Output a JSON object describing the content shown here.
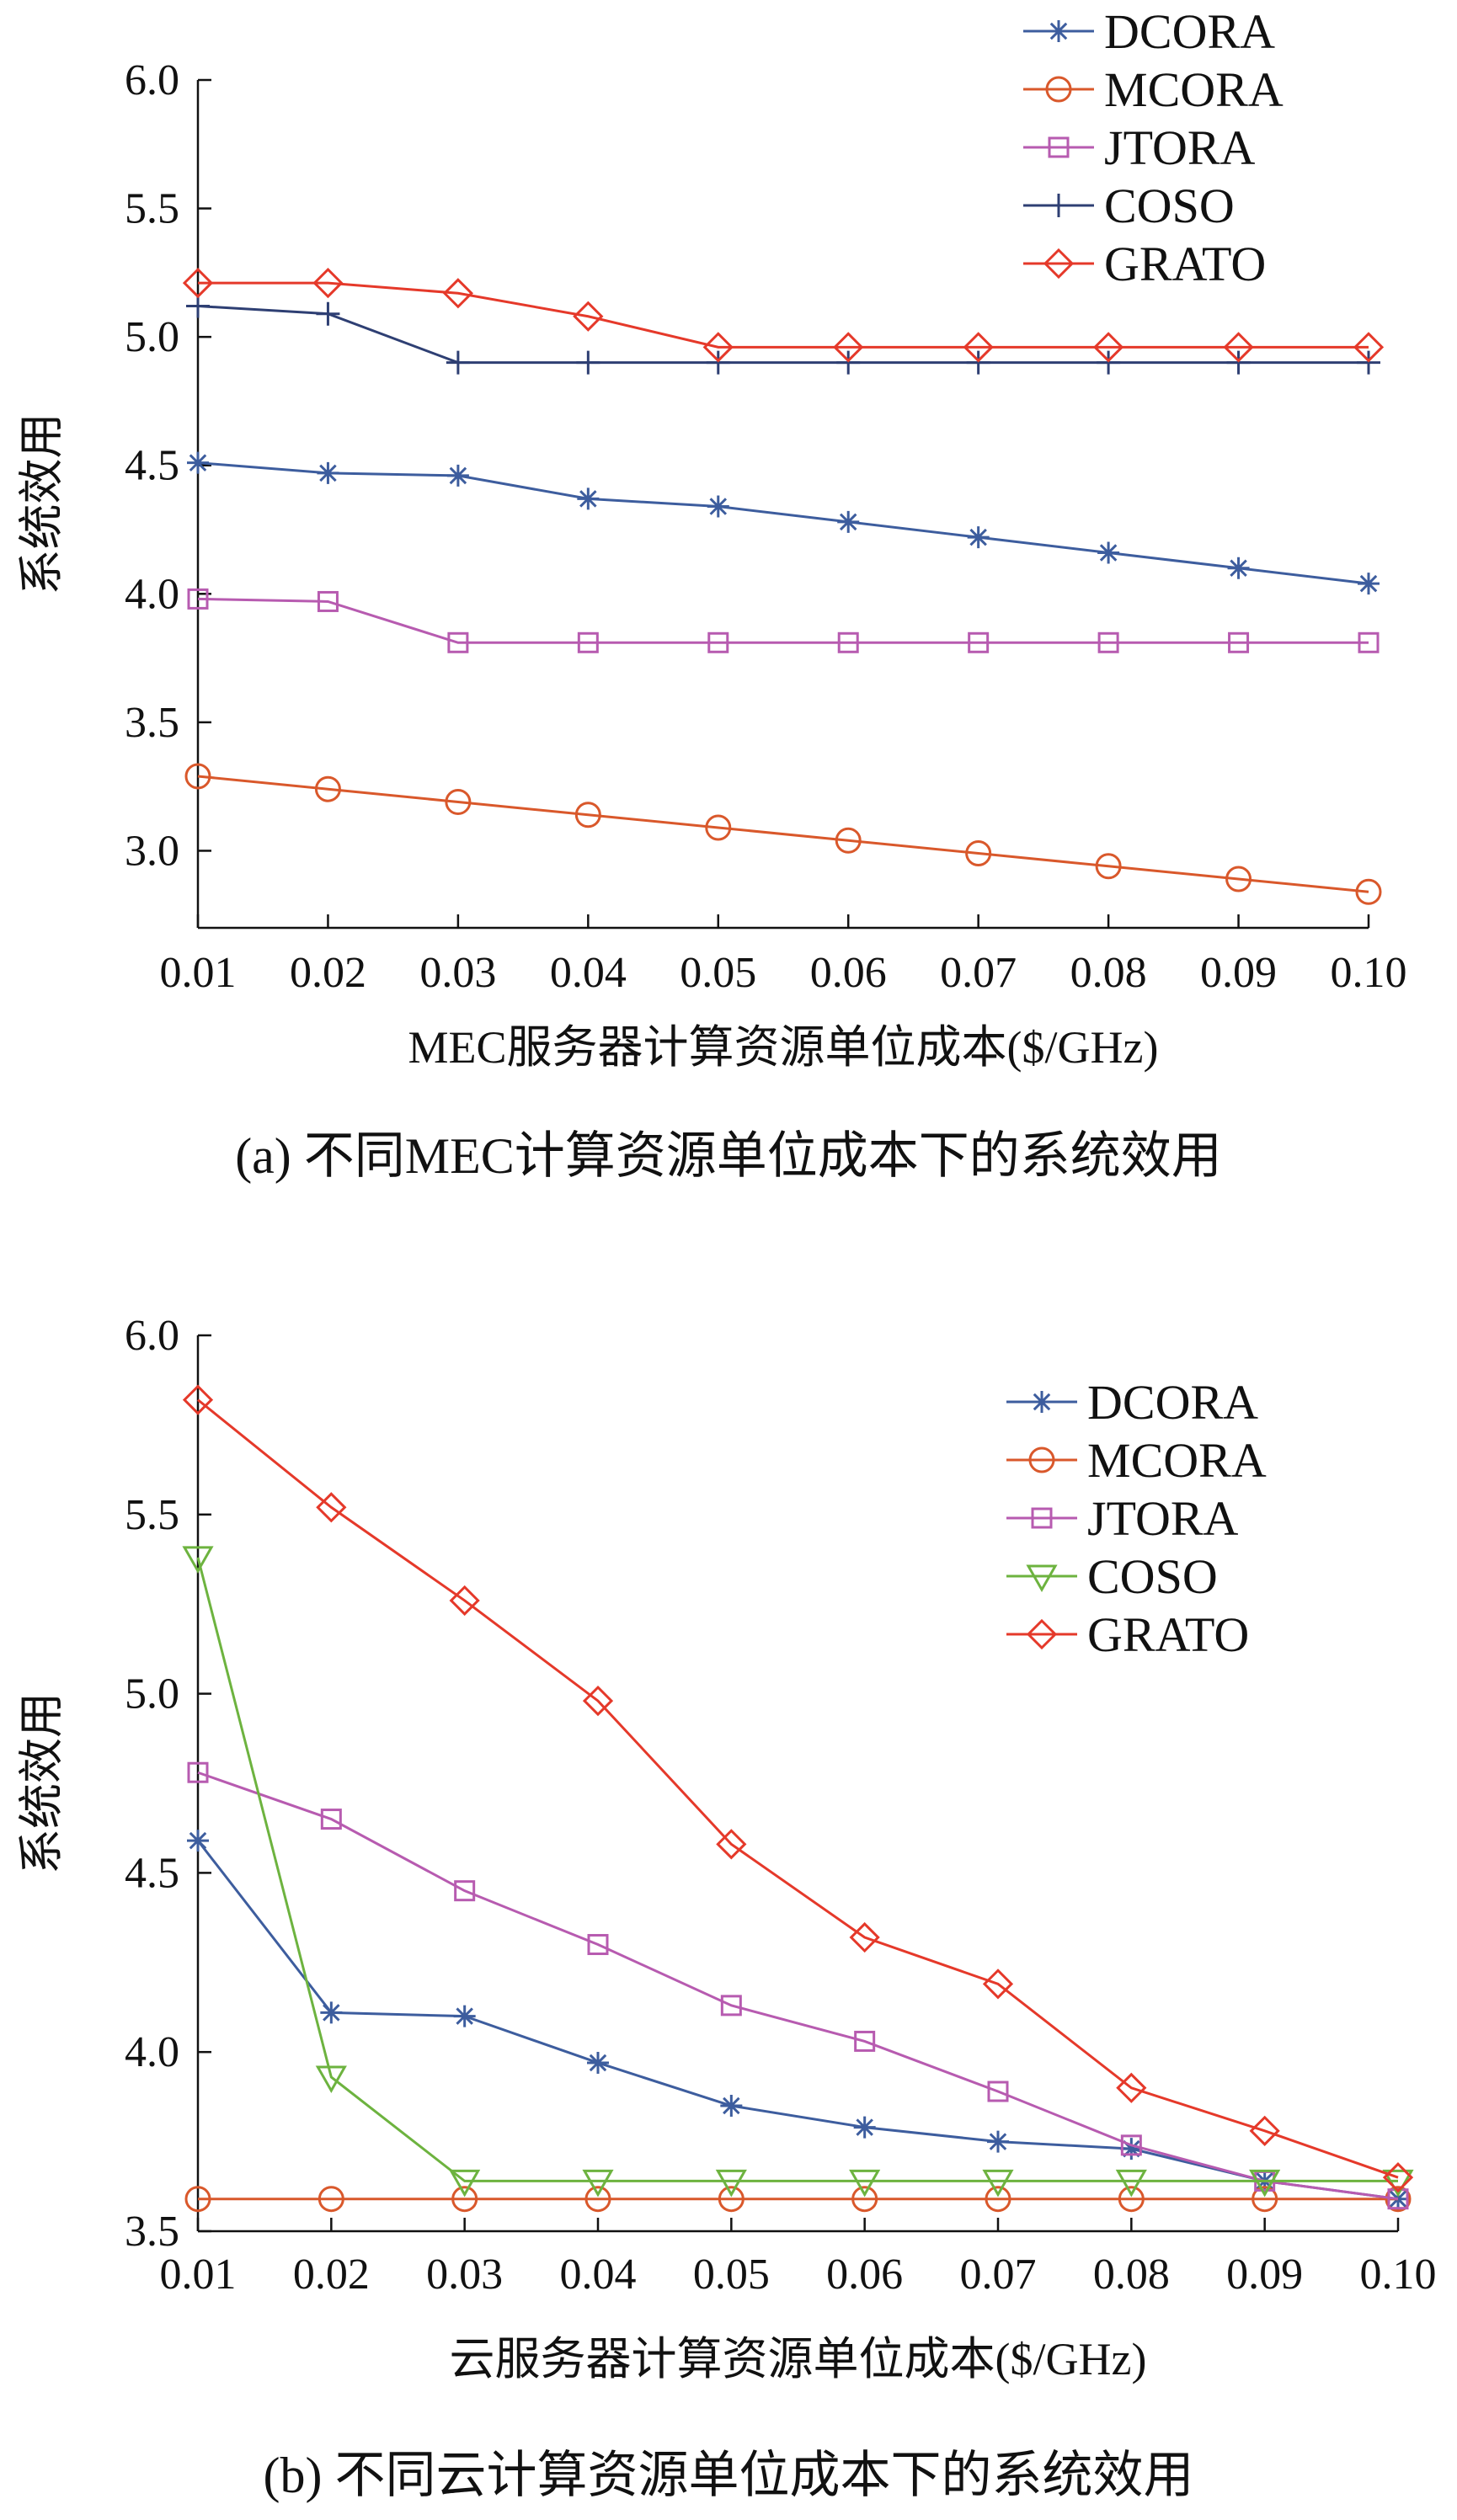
{
  "chart_data": [
    {
      "type": "line",
      "caption": "(a)  不同MEC计算资源单位成本下的系统效用",
      "xlabel": "MEC服务器计算资源单位成本($/GHz)",
      "ylabel": "系统效用",
      "x": [
        0.01,
        0.02,
        0.03,
        0.04,
        0.05,
        0.06,
        0.07,
        0.08,
        0.09,
        0.1
      ],
      "x_tick_labels": [
        "0.01",
        "0.02",
        "0.03",
        "0.04",
        "0.05",
        "0.06",
        "0.07",
        "0.08",
        "0.09",
        "0.10"
      ],
      "ylim": [
        2.7,
        6.0
      ],
      "y_ticks": [
        3.0,
        3.5,
        4.0,
        4.5,
        5.0,
        5.5,
        6.0
      ],
      "y_tick_labels": [
        "3.0",
        "3.5",
        "4.0",
        "4.5",
        "5.0",
        "5.5",
        "6.0"
      ],
      "grid": false,
      "legend_position": "top-right",
      "series": [
        {
          "name": "DCORA",
          "color": "#3d5d9e",
          "marker": "star",
          "values": [
            4.51,
            4.47,
            4.46,
            4.37,
            4.34,
            4.28,
            4.22,
            4.16,
            4.1,
            4.04
          ]
        },
        {
          "name": "MCORA",
          "color": "#d9582b",
          "marker": "circle",
          "values": [
            3.29,
            3.24,
            3.19,
            3.14,
            3.09,
            3.04,
            2.99,
            2.94,
            2.89,
            2.84
          ]
        },
        {
          "name": "JTORA",
          "color": "#b75bb0",
          "marker": "square",
          "values": [
            3.98,
            3.97,
            3.81,
            3.81,
            3.81,
            3.81,
            3.81,
            3.81,
            3.81,
            3.81
          ]
        },
        {
          "name": "COSO",
          "color": "#2e3f73",
          "marker": "plus",
          "values": [
            5.12,
            5.09,
            4.9,
            4.9,
            4.9,
            4.9,
            4.9,
            4.9,
            4.9,
            4.9
          ]
        },
        {
          "name": "GRATO",
          "color": "#e5392a",
          "marker": "diamond",
          "values": [
            5.21,
            5.21,
            5.17,
            5.08,
            4.96,
            4.96,
            4.96,
            4.96,
            4.96,
            4.96
          ]
        }
      ]
    },
    {
      "type": "line",
      "caption": "(b)  不同云计算资源单位成本下的系统效用",
      "xlabel": "云服务器计算资源单位成本($/GHz)",
      "ylabel": "系统效用",
      "x": [
        0.01,
        0.02,
        0.03,
        0.04,
        0.05,
        0.06,
        0.07,
        0.08,
        0.09,
        0.1
      ],
      "x_tick_labels": [
        "0.01",
        "0.02",
        "0.03",
        "0.04",
        "0.05",
        "0.06",
        "0.07",
        "0.08",
        "0.09",
        "0.10"
      ],
      "ylim": [
        3.5,
        6.0
      ],
      "y_ticks": [
        3.5,
        4.0,
        4.5,
        5.0,
        5.5,
        6.0
      ],
      "y_tick_labels": [
        "3.5",
        "4.0",
        "4.5",
        "5.0",
        "5.5",
        "6.0"
      ],
      "grid": false,
      "legend_position": "top-right",
      "series": [
        {
          "name": "DCORA",
          "color": "#3d5d9e",
          "marker": "star",
          "values": [
            4.59,
            4.11,
            4.1,
            3.97,
            3.85,
            3.79,
            3.75,
            3.73,
            3.64,
            3.59
          ]
        },
        {
          "name": "MCORA",
          "color": "#d9582b",
          "marker": "circle",
          "values": [
            3.59,
            3.59,
            3.59,
            3.59,
            3.59,
            3.59,
            3.59,
            3.59,
            3.59,
            3.59
          ]
        },
        {
          "name": "JTORA",
          "color": "#b75bb0",
          "marker": "square",
          "values": [
            4.78,
            4.65,
            4.45,
            4.3,
            4.13,
            4.03,
            3.89,
            3.74,
            3.64,
            3.59
          ]
        },
        {
          "name": "COSO",
          "color": "#6db33f",
          "marker": "triangle-down",
          "values": [
            5.38,
            3.93,
            3.64,
            3.64,
            3.64,
            3.64,
            3.64,
            3.64,
            3.64,
            3.64
          ]
        },
        {
          "name": "GRATO",
          "color": "#e5392a",
          "marker": "diamond",
          "values": [
            5.82,
            5.52,
            5.26,
            4.98,
            4.58,
            4.32,
            4.19,
            3.9,
            3.78,
            3.65
          ]
        }
      ]
    }
  ]
}
